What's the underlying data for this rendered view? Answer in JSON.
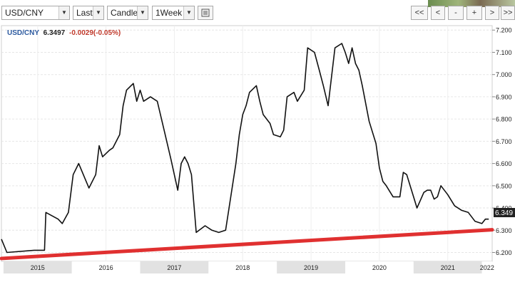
{
  "toolbar": {
    "symbol": "USD/CNY",
    "price_type": "Last",
    "chart_style": "Candle",
    "interval": "1Week",
    "nav": [
      "<<",
      "<",
      "-",
      "+",
      ">",
      ">>"
    ]
  },
  "quote": {
    "symbol": "USD/CNY",
    "price": "6.3497",
    "change": "-0.0029(-0.05%)"
  },
  "colors": {
    "price_line": "#111111",
    "trend_line": "#e03030",
    "symbol_text": "#2c5aa0",
    "change_text": "#c0392b",
    "axis_band_dark": "#e2e2e2"
  },
  "chart_data": {
    "type": "line",
    "title": "",
    "xlabel": "",
    "ylabel": "",
    "x_tick_labels": [
      "2015",
      "2016",
      "2017",
      "2018",
      "2019",
      "2020",
      "2021",
      "2022"
    ],
    "y_tick_labels": [
      "6.200",
      "6.300",
      "6.400",
      "6.500",
      "6.600",
      "6.700",
      "6.800",
      "6.900",
      "7.000",
      "7.100",
      "7.200"
    ],
    "ylim": [
      6.16,
      7.22
    ],
    "xlim": [
      2014.97,
      2022.15
    ],
    "grid": true,
    "last_price_label": "6.349",
    "series": [
      {
        "x": [
          2014.97,
          2015.05,
          2015.45,
          2015.6,
          2015.62,
          2015.8,
          2015.86,
          2015.95,
          2016.02,
          2016.1,
          2016.25,
          2016.35,
          2016.4,
          2016.45,
          2016.55,
          2016.6,
          2016.7,
          2016.75,
          2016.8,
          2016.9,
          2016.95,
          2017.0,
          2017.05,
          2017.15,
          2017.25,
          2017.35,
          2017.45,
          2017.55,
          2017.6,
          2017.65,
          2017.7,
          2017.75,
          2017.82,
          2017.95,
          2018.05,
          2018.15,
          2018.25,
          2018.3,
          2018.4,
          2018.45,
          2018.5,
          2018.55,
          2018.6,
          2018.7,
          2018.75,
          2018.8,
          2018.9,
          2018.95,
          2019.05,
          2019.1,
          2019.15,
          2019.25,
          2019.3,
          2019.4,
          2019.45,
          2019.55,
          2019.62,
          2019.68,
          2019.75,
          2019.85,
          2019.95,
          2020.0,
          2020.05,
          2020.1,
          2020.15,
          2020.2,
          2020.25,
          2020.35,
          2020.45,
          2020.5,
          2020.55,
          2020.6,
          2020.7,
          2020.8,
          2020.85,
          2020.9,
          2021.0,
          2021.05,
          2021.15,
          2021.2,
          2021.25,
          2021.3,
          2021.35,
          2021.4,
          2021.5,
          2021.6,
          2021.7,
          2021.8,
          2021.9,
          2022.0,
          2022.05,
          2022.1
        ],
        "y": [
          6.26,
          6.2,
          6.21,
          6.21,
          6.38,
          6.35,
          6.33,
          6.38,
          6.55,
          6.6,
          6.49,
          6.55,
          6.68,
          6.63,
          6.66,
          6.67,
          6.73,
          6.86,
          6.93,
          6.96,
          6.88,
          6.93,
          6.88,
          6.9,
          6.88,
          6.75,
          6.62,
          6.48,
          6.6,
          6.63,
          6.6,
          6.55,
          6.29,
          6.32,
          6.3,
          6.29,
          6.3,
          6.4,
          6.6,
          6.73,
          6.82,
          6.86,
          6.92,
          6.95,
          6.88,
          6.82,
          6.78,
          6.73,
          6.72,
          6.75,
          6.9,
          6.92,
          6.88,
          6.93,
          7.12,
          7.1,
          7.02,
          6.95,
          6.86,
          7.12,
          7.14,
          7.1,
          7.05,
          7.12,
          7.05,
          7.02,
          6.95,
          6.79,
          6.69,
          6.58,
          6.52,
          6.5,
          6.45,
          6.45,
          6.56,
          6.55,
          6.45,
          6.4,
          6.47,
          6.48,
          6.48,
          6.44,
          6.45,
          6.5,
          6.46,
          6.41,
          6.39,
          6.38,
          6.34,
          6.33,
          6.35,
          6.35
        ]
      }
    ],
    "trend_line": {
      "x": [
        2014.97,
        2022.15
      ],
      "y": [
        6.173,
        6.302
      ]
    }
  }
}
